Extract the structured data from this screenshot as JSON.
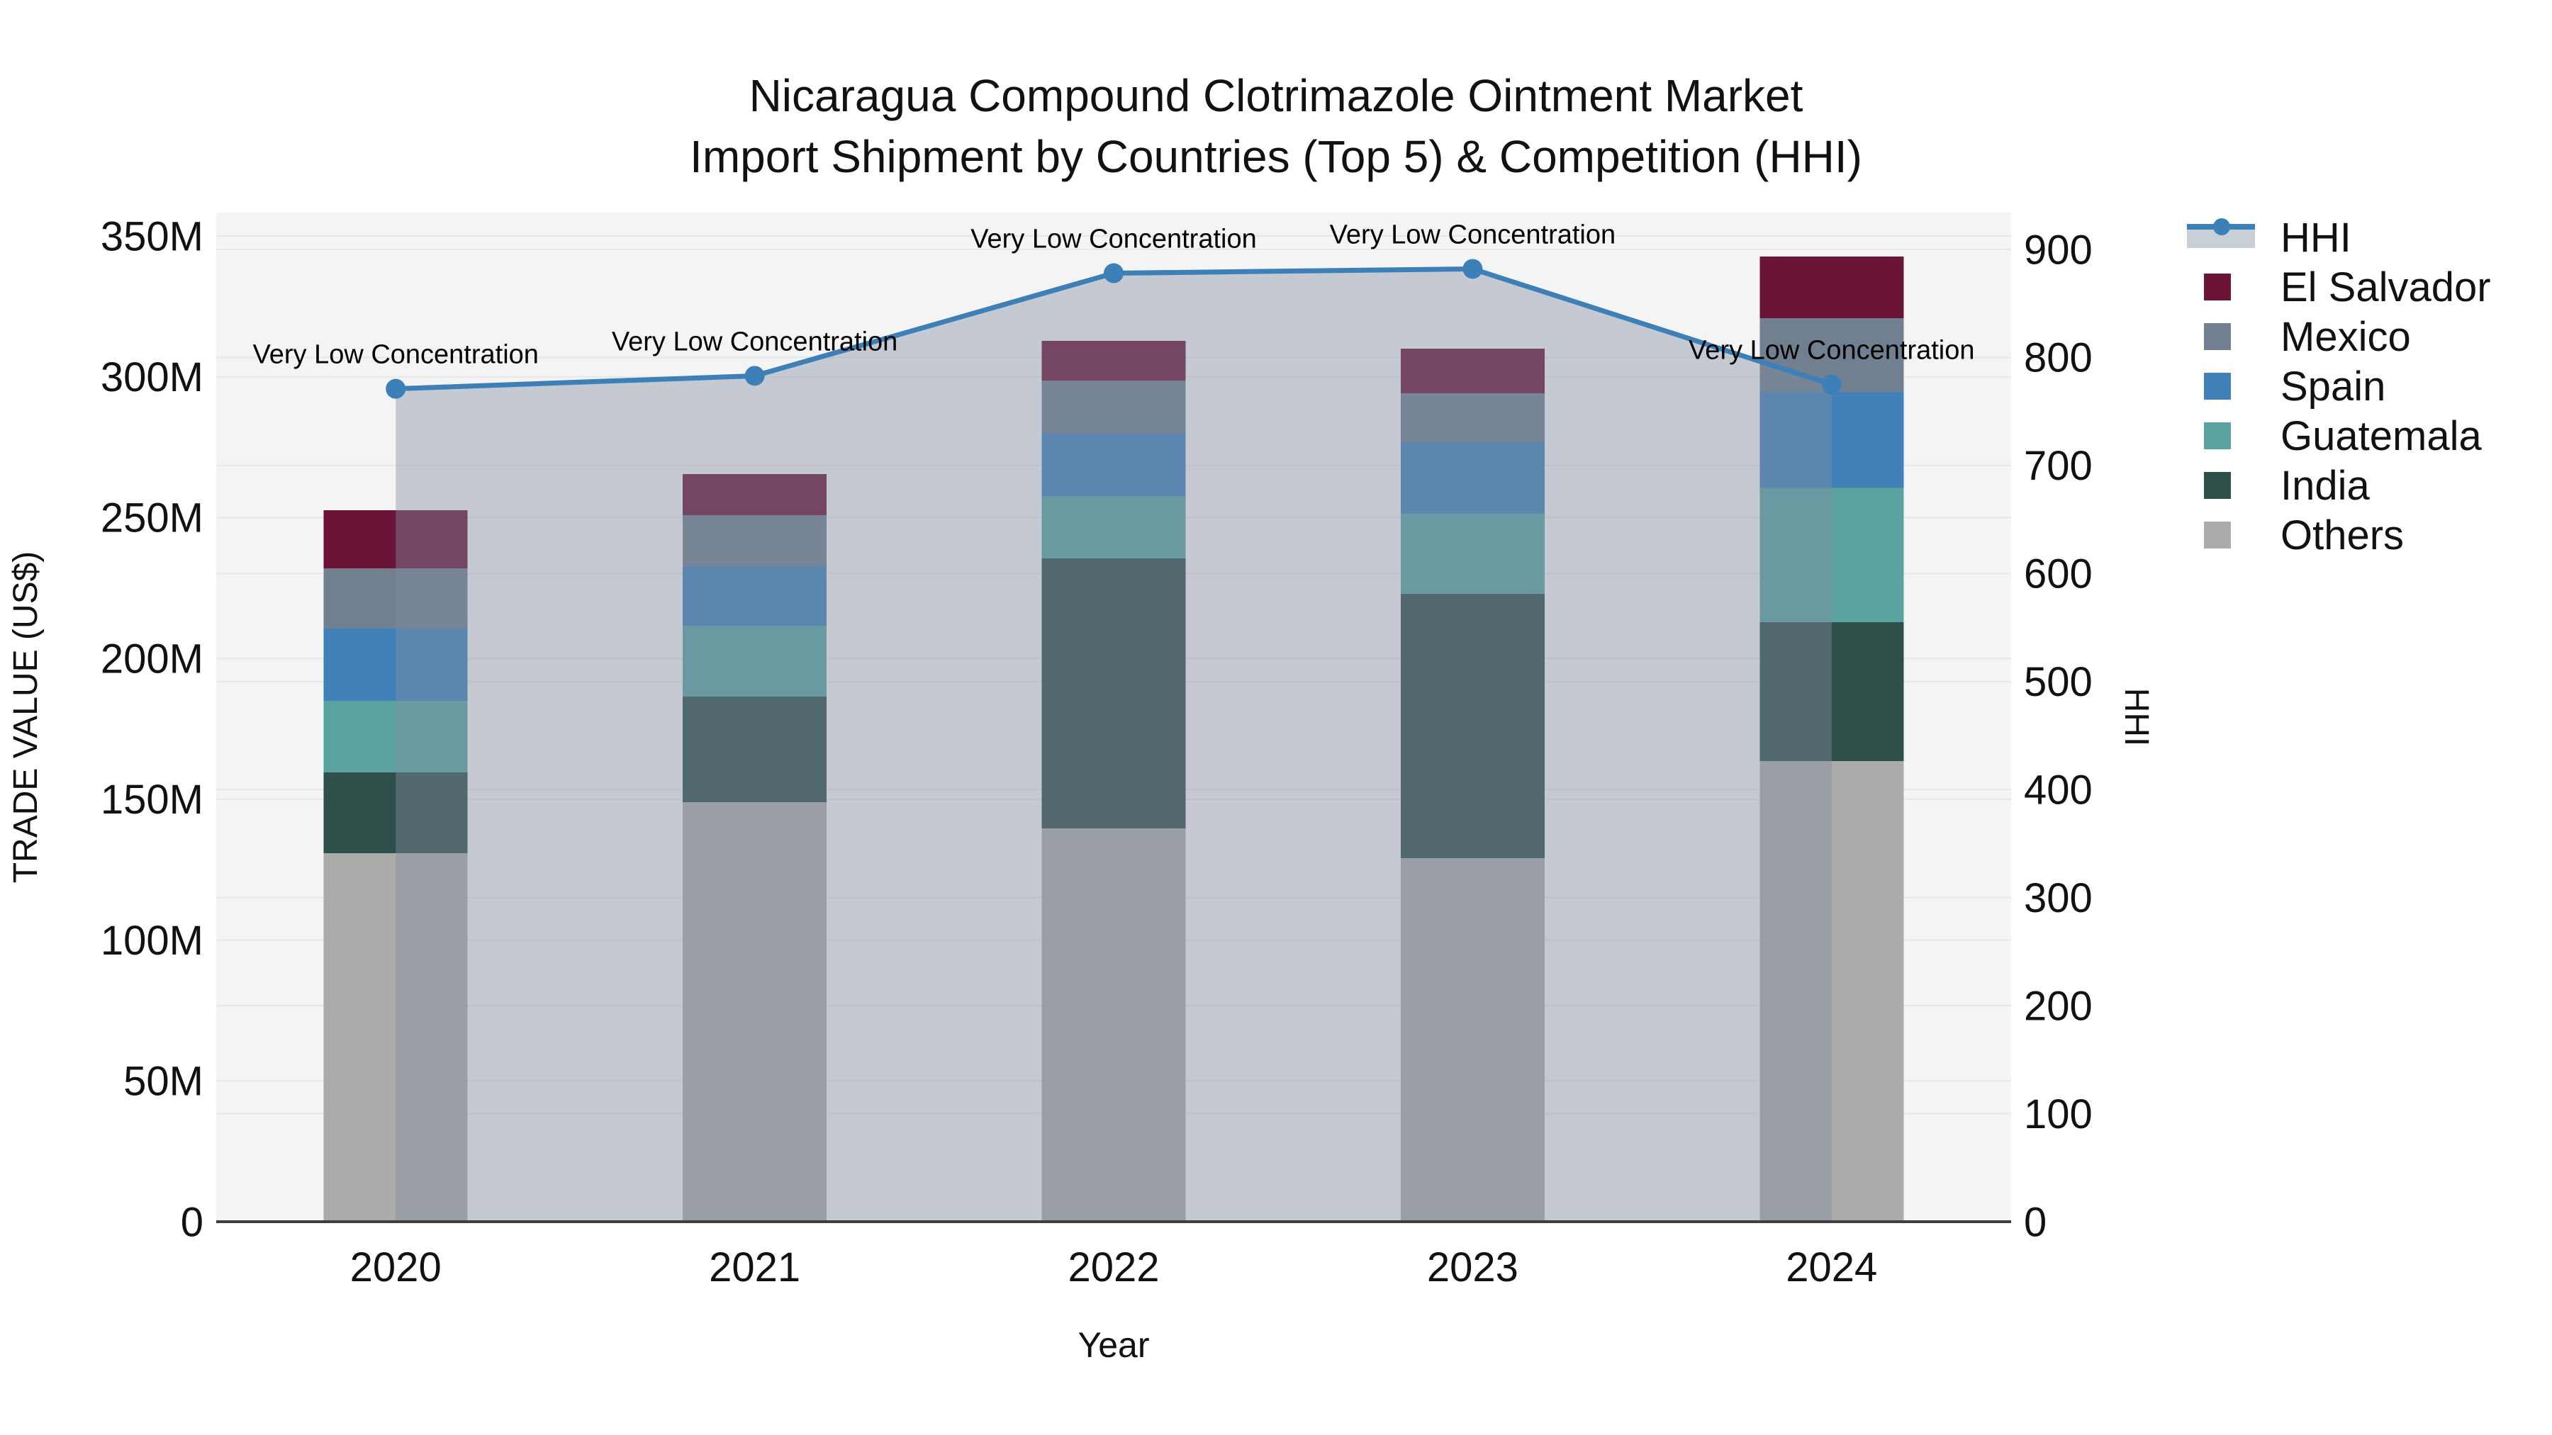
{
  "title": {
    "line1": "Nicaragua Compound Clotrimazole Ointment Market",
    "line2": "Import Shipment by Countries (Top 5) & Competition (HHI)"
  },
  "axes": {
    "y_left": {
      "label": "TRADE VALUE (US$)",
      "tick_labels": [
        "0",
        "50M",
        "100M",
        "150M",
        "200M",
        "250M",
        "300M",
        "350M"
      ],
      "tick_step": 50,
      "max": 350
    },
    "y_right": {
      "label": "HHI",
      "tick_labels": [
        "0",
        "100",
        "200",
        "300",
        "400",
        "500",
        "600",
        "700",
        "800",
        "900"
      ],
      "tick_step": 100,
      "max": 900
    },
    "x": {
      "label": "Year"
    }
  },
  "legend": {
    "items": [
      {
        "label": "HHI",
        "type": "line",
        "color": "#3D80B8",
        "band_color": "#C9CFD9"
      },
      {
        "label": "El Salvador",
        "type": "box",
        "color": "#6B1438"
      },
      {
        "label": "Mexico",
        "type": "box",
        "color": "#708090"
      },
      {
        "label": "Spain",
        "type": "box",
        "color": "#4181B9"
      },
      {
        "label": "Guatemala",
        "type": "box",
        "color": "#5BA3A0"
      },
      {
        "label": "India",
        "type": "box",
        "color": "#2F4F4A"
      },
      {
        "label": "Others",
        "type": "box",
        "color": "#ABABA9"
      }
    ]
  },
  "chart_data": {
    "type": "bar",
    "subtype": "stacked-bars-with-line",
    "categories": [
      "2020",
      "2021",
      "2022",
      "2023",
      "2024"
    ],
    "value_unit": "M US$",
    "series": [
      {
        "name": "Others",
        "color": "#ABABA9",
        "values": [
          130.9,
          149.0,
          139.7,
          129.1,
          163.6
        ]
      },
      {
        "name": "India",
        "color": "#2F4F4A",
        "values": [
          28.6,
          37.5,
          95.8,
          93.8,
          49.3
        ]
      },
      {
        "name": "Guatemala",
        "color": "#5BA3A0",
        "values": [
          25.5,
          25.1,
          22.2,
          28.5,
          47.7
        ]
      },
      {
        "name": "Spain",
        "color": "#4181B9",
        "values": [
          25.6,
          21.1,
          22.4,
          25.4,
          34.1
        ]
      },
      {
        "name": "Mexico",
        "color": "#708090",
        "values": [
          21.4,
          18.2,
          18.6,
          17.4,
          26.1
        ]
      },
      {
        "name": "El Salvador",
        "color": "#6B1438",
        "values": [
          20.6,
          14.6,
          14.1,
          15.8,
          21.9
        ]
      }
    ],
    "bar_totals": [
      252.6,
      265.5,
      312.8,
      310.0,
      342.7
    ],
    "line_series": {
      "name": "HHI",
      "axis": "right",
      "color": "#3D80B8",
      "area_color": "rgba(130,140,163,0.42)",
      "values": [
        771,
        783,
        878,
        882,
        775
      ],
      "annotations": [
        "Very Low Concentration",
        "Very Low Concentration",
        "Very Low Concentration",
        "Very Low Concentration",
        "Very Low Concentration"
      ]
    },
    "title": "Nicaragua Compound Clotrimazole Ointment Market Import Shipment by Countries (Top 5) & Competition (HHI)",
    "xlabel": "Year",
    "ylabel_left": "TRADE VALUE (US$)",
    "ylabel_right": "HHI",
    "ylim_left": [
      0,
      350
    ],
    "ylim_right": [
      0,
      900
    ],
    "grid": true,
    "legend_position": "right",
    "plot_bg": "#F4F4F4",
    "grid_color": "#E7E7E7",
    "baseline_color": "#3F3F3F"
  }
}
